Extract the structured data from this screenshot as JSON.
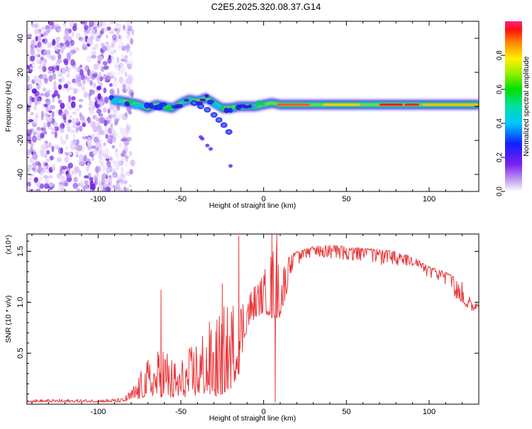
{
  "title": "C2E5.2025.320.08.37.G14",
  "chart_data": [
    {
      "type": "heatmap",
      "xlabel": "Height of straight line (km)",
      "ylabel": "Frequency (Hz)",
      "xlim": [
        -143,
        130
      ],
      "ylim": [
        -50,
        50
      ],
      "xticks": [
        -100,
        -50,
        0,
        50,
        100
      ],
      "yticks": [
        -40,
        -20,
        0,
        20,
        40
      ],
      "noise_region_x": [
        -143,
        -83
      ],
      "ridge": {
        "x": [
          -92,
          -85,
          -80,
          -75,
          -70,
          -65,
          -60,
          -55,
          -50,
          -45,
          -40,
          -35,
          -30,
          -25,
          -20,
          -15,
          -10,
          -5,
          0,
          5,
          10,
          20,
          40,
          60,
          80,
          100,
          130
        ],
        "y": [
          4,
          3,
          2,
          1,
          -1,
          1,
          0,
          -1,
          2,
          4,
          3,
          5,
          2,
          -1,
          -1,
          0,
          0,
          0,
          1,
          2,
          1,
          1,
          1,
          1,
          1,
          1,
          1
        ]
      },
      "branch": {
        "x": [
          -42,
          -38,
          -34,
          -30,
          -27,
          -24,
          -21
        ],
        "y": [
          2,
          0,
          -2,
          -5,
          -8,
          -11,
          -15
        ]
      },
      "colorbar": {
        "label": "Normalized spectral amplitude",
        "range": [
          0,
          1
        ],
        "ticks": [
          "0.0",
          "0.2",
          "0.4",
          "0.6",
          "0.8"
        ]
      }
    },
    {
      "type": "line",
      "xlabel": "Height of straight line (km)",
      "ylabel": "SNR (10 * v/v)",
      "ylabel_multiplier": "(x10⁴)",
      "xlim": [
        -143,
        130
      ],
      "ylim": [
        0,
        1.67
      ],
      "xticks": [
        -100,
        -50,
        0,
        50,
        100
      ],
      "yticks": [
        "0.5",
        "1.0",
        "1.5"
      ],
      "color": "#e8373a",
      "envelope": {
        "x": [
          -143,
          -100,
          -85,
          -80,
          -75,
          -70,
          -65,
          -60,
          -55,
          -50,
          -45,
          -40,
          -35,
          -30,
          -25,
          -20,
          -15,
          -10,
          -5,
          0,
          5,
          8,
          10,
          15,
          20,
          25,
          30,
          40,
          50,
          60,
          70,
          80,
          90,
          100,
          110,
          120,
          125,
          130
        ],
        "base": [
          0.02,
          0.02,
          0.02,
          0.04,
          0.05,
          0.08,
          0.08,
          0.07,
          0.05,
          0.06,
          0.08,
          0.08,
          0.1,
          0.06,
          0.1,
          0.15,
          0.3,
          0.75,
          0.85,
          0.9,
          0.85,
          0.85,
          0.85,
          1.15,
          1.3,
          1.35,
          1.4,
          1.38,
          1.35,
          1.35,
          1.3,
          1.3,
          1.25,
          1.2,
          1.1,
          1.0,
          0.9,
          0.95
        ],
        "peak": [
          0.05,
          0.05,
          0.06,
          0.15,
          0.3,
          0.45,
          0.5,
          0.65,
          0.45,
          0.45,
          0.55,
          0.7,
          0.8,
          0.85,
          0.95,
          1.05,
          1.1,
          1.12,
          1.2,
          1.3,
          1.55,
          1.67,
          1.4,
          1.45,
          1.5,
          1.52,
          1.55,
          1.56,
          1.55,
          1.53,
          1.52,
          1.5,
          1.45,
          1.35,
          1.3,
          1.2,
          1.05,
          1.05
        ]
      },
      "spikes": [
        {
          "x": -62,
          "y": 1.12
        },
        {
          "x": -25,
          "y": 1.18
        },
        {
          "x": -15,
          "y": 1.65
        },
        {
          "x": 5,
          "y": 1.67
        },
        {
          "x": 7,
          "y": 0.02
        },
        {
          "x": 8,
          "y": 1.67
        }
      ]
    }
  ]
}
